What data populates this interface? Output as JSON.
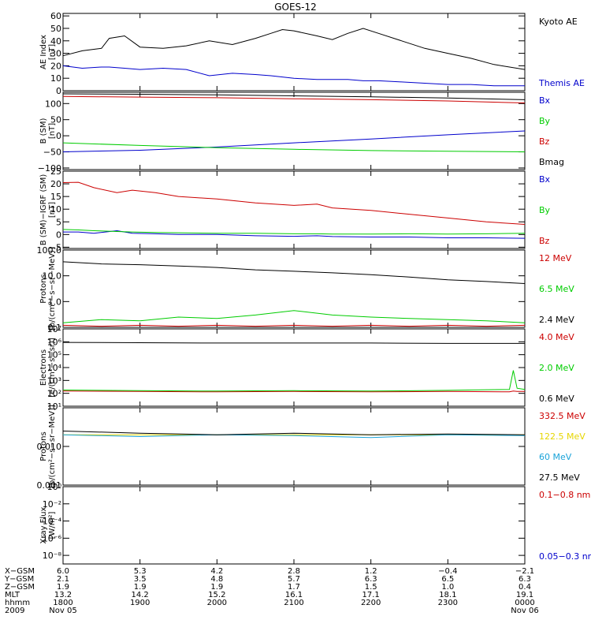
{
  "title": "GOES-12",
  "colors": {
    "black": "#000000",
    "red": "#cc0000",
    "green": "#00cc00",
    "blue": "#0000cc",
    "yellow": "#e6d600",
    "cyan": "#1aa3d9"
  },
  "chart_data": [
    {
      "type": "line",
      "panel": "ae",
      "ylabel": [
        "AE Index",
        "[nT]"
      ],
      "yscale": "linear",
      "ylim": [
        0,
        62
      ],
      "yticks": [
        "60",
        "50",
        "40",
        "30",
        "20",
        "10",
        "0"
      ],
      "ytick_values": [
        60,
        50,
        40,
        30,
        20,
        10,
        0
      ],
      "x_hours": [
        0,
        0.25,
        0.5,
        0.6,
        0.8,
        1.0,
        1.3,
        1.6,
        1.9,
        2.2,
        2.5,
        2.7,
        2.85,
        3.0,
        3.3,
        3.5,
        3.7,
        3.9,
        4.1,
        4.4,
        4.7,
        5.0,
        5.3,
        5.6,
        6.0
      ],
      "series": [
        {
          "name": "Kyoto AE",
          "color": "black",
          "values": [
            28,
            32,
            34,
            42,
            44,
            35,
            34,
            36,
            40,
            37,
            42,
            46,
            49,
            48,
            44,
            41,
            46,
            50,
            46,
            40,
            34,
            30,
            26,
            21,
            17
          ]
        },
        {
          "name": "Themis AE",
          "color": "blue",
          "values": [
            20,
            18,
            19,
            19,
            18,
            17,
            18,
            17,
            12,
            14,
            13,
            12,
            11,
            10,
            9,
            9,
            9,
            8,
            8,
            7,
            6,
            5,
            5,
            4,
            4
          ]
        }
      ],
      "legend": [
        "Kyoto AE",
        "Themis AE"
      ]
    },
    {
      "type": "line",
      "panel": "b_sm",
      "ylabel": [
        "B (SM)",
        "[nT]"
      ],
      "yscale": "linear",
      "ylim": [
        -105,
        135
      ],
      "yticks": [
        "100",
        "50",
        "0",
        "−50",
        "−100"
      ],
      "ytick_values": [
        100,
        50,
        0,
        -50,
        -100
      ],
      "x_hours": [
        0,
        1,
        2,
        3,
        4,
        5,
        6
      ],
      "series": [
        {
          "name": "Bx",
          "color": "blue",
          "values": [
            -50,
            -45,
            -35,
            -22,
            -10,
            3,
            15
          ]
        },
        {
          "name": "By",
          "color": "green",
          "values": [
            -22,
            -30,
            -37,
            -42,
            -46,
            -48,
            -50
          ]
        },
        {
          "name": "Bz",
          "color": "red",
          "values": [
            122,
            120,
            118,
            115,
            112,
            108,
            102
          ]
        },
        {
          "name": "Bmag",
          "color": "black",
          "values": [
            130,
            129,
            127,
            124,
            121,
            117,
            112
          ]
        }
      ],
      "legend": [
        "Bx",
        "By",
        "Bz",
        "Bmag"
      ]
    },
    {
      "type": "line",
      "panel": "b_igrf",
      "ylabel": [
        "B (SM)−IGRF (SM)",
        "[nT]"
      ],
      "yscale": "linear",
      "ylim": [
        -5.5,
        25
      ],
      "yticks": [
        "25",
        "20",
        "15",
        "10",
        "5",
        "0",
        "−5"
      ],
      "ytick_values": [
        25,
        20,
        15,
        10,
        5,
        0,
        -5
      ],
      "x_hours": [
        0,
        0.2,
        0.4,
        0.7,
        0.9,
        1.2,
        1.5,
        2.0,
        2.5,
        3.0,
        3.3,
        3.5,
        4.0,
        4.5,
        5.0,
        5.5,
        6.0
      ],
      "series": [
        {
          "name": "Bx",
          "color": "blue",
          "values": [
            1,
            1,
            0.5,
            1.5,
            0.5,
            0.3,
            0,
            0,
            -0.5,
            -0.7,
            -0.5,
            -0.8,
            -1,
            -1,
            -1.3,
            -1.3,
            -1.5
          ]
        },
        {
          "name": "By",
          "color": "green",
          "values": [
            2,
            1.8,
            1.5,
            1.2,
            1,
            0.8,
            0.7,
            0.5,
            0.5,
            0.3,
            0.3,
            0.2,
            0.2,
            0.3,
            0.2,
            0.3,
            0.5
          ]
        },
        {
          "name": "Bz",
          "color": "red",
          "values": [
            20.5,
            20.6,
            18.5,
            16.5,
            17.5,
            16.5,
            15,
            14,
            12.5,
            11.5,
            12,
            10.5,
            9.5,
            8,
            6.5,
            5,
            4
          ]
        }
      ],
      "legend": [
        "Bx",
        "By",
        "Bz"
      ]
    },
    {
      "type": "line",
      "panel": "protons_low",
      "ylabel": [
        "Protons",
        "[p/(cm²−s−sr−MeV)]"
      ],
      "yscale": "log",
      "ylim": [
        0.1,
        100
      ],
      "yticks": [
        "100.0",
        "10.0",
        "1.0",
        "0.1"
      ],
      "ytick_values": [
        100,
        10,
        1,
        0.1
      ],
      "x_hours": [
        0,
        0.5,
        1,
        1.5,
        2,
        2.5,
        3,
        3.5,
        4,
        4.5,
        5,
        5.5,
        6
      ],
      "series": [
        {
          "name": "12 MeV",
          "color": "red",
          "values": [
            0.12,
            0.11,
            0.12,
            0.11,
            0.12,
            0.11,
            0.12,
            0.11,
            0.12,
            0.11,
            0.12,
            0.11,
            0.12
          ]
        },
        {
          "name": "6.5 MeV",
          "color": "green",
          "values": [
            0.15,
            0.2,
            0.18,
            0.25,
            0.22,
            0.3,
            0.45,
            0.3,
            0.25,
            0.22,
            0.2,
            0.18,
            0.15
          ]
        },
        {
          "name": "2.4 MeV",
          "color": "black",
          "values": [
            35,
            29,
            27,
            24,
            21,
            17,
            15,
            13,
            11,
            9,
            7,
            6,
            5
          ]
        }
      ],
      "legend": [
        "12 MeV",
        "6.5 MeV",
        "2.4 MeV"
      ]
    },
    {
      "type": "line",
      "panel": "electrons",
      "ylabel": [
        "Electrons",
        "[e/(cm²−s−sr)]"
      ],
      "yscale": "log",
      "ylim": [
        10,
        10000000
      ],
      "yticks": [
        "10⁷",
        "10⁶",
        "10⁵",
        "10⁴",
        "10³",
        "10²",
        "10¹"
      ],
      "ytick_values": [
        10000000,
        1000000,
        100000,
        10000,
        1000,
        100,
        10
      ],
      "x_hours": [
        0,
        1,
        2,
        3,
        4,
        5,
        5.8,
        5.85,
        5.9,
        6
      ],
      "series": [
        {
          "name": "4.0 MeV",
          "color": "red",
          "values": [
            150,
            140,
            130,
            140,
            130,
            140,
            130,
            150,
            140,
            140
          ]
        },
        {
          "name": "2.0 MeV",
          "color": "green",
          "values": [
            180,
            160,
            150,
            160,
            150,
            170,
            200,
            6000,
            250,
            200
          ]
        },
        {
          "name": "0.6 MeV",
          "color": "black",
          "values": [
            900000,
            850000,
            800000,
            800000,
            800000,
            750000,
            750000,
            750000,
            750000,
            750000
          ]
        }
      ],
      "legend": [
        "4.0 MeV",
        "2.0 MeV",
        "0.6 MeV"
      ]
    },
    {
      "type": "line",
      "panel": "protons_high",
      "ylabel": [
        "Protons",
        "[p/(cm²−s−sr−MeV)]"
      ],
      "yscale": "log",
      "ylim": [
        0.001,
        0.1
      ],
      "yticks": [
        "0.010",
        "0.001"
      ],
      "ytick_values": [
        0.01,
        0.001
      ],
      "x_hours": [
        0,
        1,
        2,
        3,
        4,
        5,
        6
      ],
      "series": [
        {
          "name": "332.5 MeV",
          "color": "red",
          "values": []
        },
        {
          "name": "122.5 MeV",
          "color": "yellow",
          "values": [
            0.02,
            0.02,
            0.02,
            0.02,
            0.02,
            0.02,
            0.02
          ]
        },
        {
          "name": "60 MeV",
          "color": "cyan",
          "values": [
            0.02,
            0.018,
            0.02,
            0.019,
            0.017,
            0.02,
            0.019
          ]
        },
        {
          "name": "27.5 MeV",
          "color": "black",
          "values": [
            0.025,
            0.022,
            0.02,
            0.022,
            0.02,
            0.021,
            0.02
          ]
        }
      ],
      "legend": [
        "332.5 MeV",
        "122.5 MeV",
        "60 MeV",
        "27.5 MeV"
      ]
    },
    {
      "type": "line",
      "panel": "xray",
      "ylabel": [
        "Xray Flux",
        "[W/m²]"
      ],
      "yscale": "log",
      "ylim": [
        1e-09,
        1
      ],
      "yticks": [
        "10⁰",
        "10⁻²",
        "10⁻⁴",
        "10⁻⁶",
        "10⁻⁸"
      ],
      "ytick_values": [
        1,
        0.01,
        0.0001,
        1e-06,
        1e-08
      ],
      "x_hours": [],
      "series": [
        {
          "name": "0.1−0.8 nm",
          "color": "red",
          "values": []
        },
        {
          "name": "0.05−0.3 nm",
          "color": "blue",
          "values": []
        }
      ],
      "legend": [
        "0.1−0.8 nm",
        "0.05−0.3 nm"
      ]
    }
  ],
  "ephemeris": {
    "row_labels": [
      "X−GSM",
      "Y−GSM",
      "Z−GSM",
      "MLT",
      "hhmm",
      "2009"
    ],
    "columns": [
      {
        "hour": 0,
        "values": [
          "6.0",
          "2.1",
          "1.9",
          "13.2",
          "1800",
          "Nov 05"
        ]
      },
      {
        "hour": 1,
        "values": [
          "5.3",
          "3.5",
          "1.9",
          "14.2",
          "1900",
          ""
        ]
      },
      {
        "hour": 2,
        "values": [
          "4.2",
          "4.8",
          "1.9",
          "15.2",
          "2000",
          ""
        ]
      },
      {
        "hour": 3,
        "values": [
          "2.8",
          "5.7",
          "1.7",
          "16.1",
          "2100",
          ""
        ]
      },
      {
        "hour": 4,
        "values": [
          "1.2",
          "6.3",
          "1.5",
          "17.1",
          "2200",
          ""
        ]
      },
      {
        "hour": 5,
        "values": [
          "−0.4",
          "6.5",
          "1.0",
          "18.1",
          "2300",
          ""
        ]
      },
      {
        "hour": 6,
        "values": [
          "−2.1",
          "6.3",
          "0.4",
          "19.1",
          "0000",
          "Nov 06"
        ]
      }
    ]
  }
}
